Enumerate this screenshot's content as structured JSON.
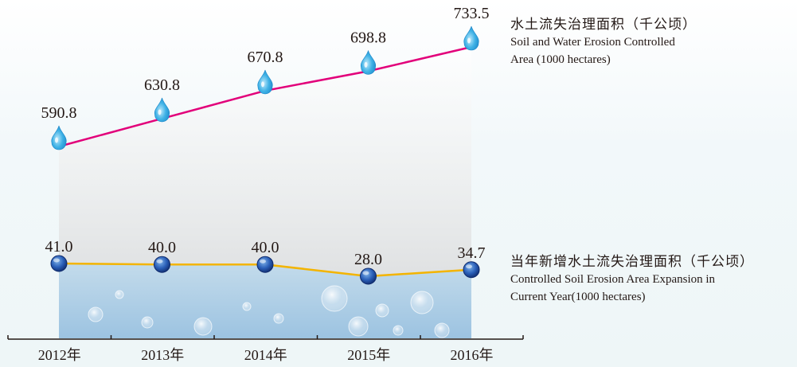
{
  "chart_data": {
    "type": "line",
    "categories": [
      "2012年",
      "2013年",
      "2014年",
      "2015年",
      "2016年"
    ],
    "series": [
      {
        "name_cn": "水土流失治理面积（千公顷）",
        "name_en": "Soil and Water Erosion Controlled Area (1000 hectares)",
        "values": [
          590.8,
          630.8,
          670.8,
          698.8,
          733.5
        ],
        "labels": [
          "590.8",
          "630.8",
          "670.8",
          "698.8",
          "733.5"
        ],
        "color": "#e2007a"
      },
      {
        "name_cn": "当年新增水土流失治理面积（千公顷）",
        "name_en": "Controlled Soil Erosion Area Expansion in Current Year(1000 hectares)",
        "values": [
          41.0,
          40.0,
          40.0,
          28.0,
          34.7
        ],
        "labels": [
          "41.0",
          "40.0",
          "40.0",
          "28.0",
          "34.7"
        ],
        "color": "#f3b400"
      }
    ],
    "colors": {
      "marker_top": "#2aa5de",
      "marker_bottom": "#1b3f8f",
      "axis": "#231815"
    }
  },
  "legend": {
    "top": {
      "cn": "水土流失治理面积（千公顷）",
      "en_line1": "Soil and Water Erosion Controlled",
      "en_line2": "Area (1000 hectares)"
    },
    "bottom": {
      "cn": "当年新增水土流失治理面积（千公顷）",
      "en_line1": "Controlled Soil Erosion Area Expansion in",
      "en_line2": "Current Year(1000 hectares)"
    }
  }
}
